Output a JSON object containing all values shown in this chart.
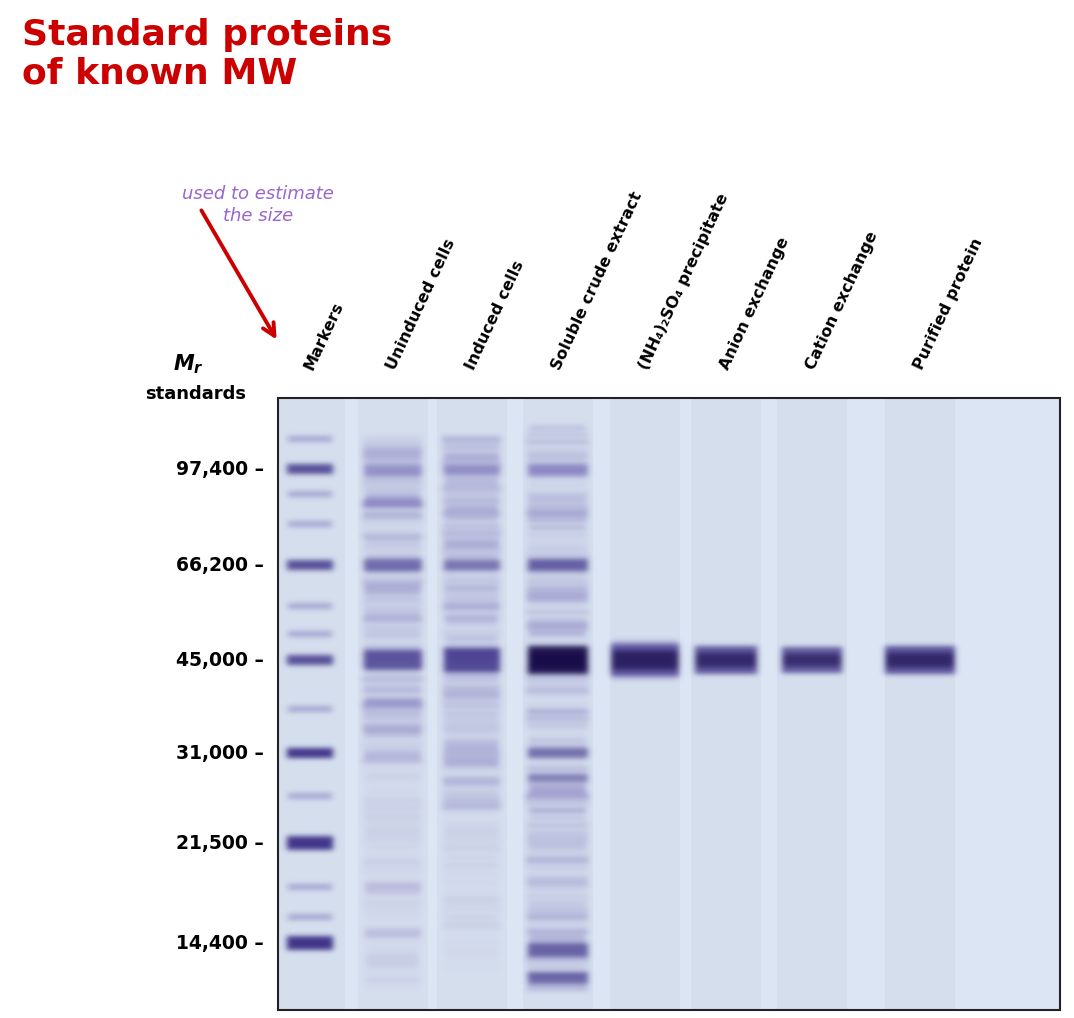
{
  "title_text": "Standard proteins\nof known MW",
  "title_color": "#cc0000",
  "title_fontsize": 26,
  "subtitle_text": "used to estimate\nthe size",
  "subtitle_color": "#9966cc",
  "subtitle_fontsize": 13,
  "mw_labels": [
    "97,400",
    "66,200",
    "45,000",
    "31,000",
    "21,500",
    "14,400"
  ],
  "mw_values": [
    97400,
    66200,
    45000,
    31000,
    21500,
    14400
  ],
  "column_labels": [
    "Markers",
    "Uninduced cells",
    "Induced cells",
    "Soluble crude extract",
    "(NH₄)₂SO₄ precipitate",
    "Anion exchange",
    "Cation exchange",
    "Purified protein"
  ],
  "background_color": "#ffffff",
  "gel_background": "#dce6f5",
  "gel_border_color": "#222222",
  "fig_width": 10.74,
  "fig_height": 10.18,
  "dpi": 100
}
